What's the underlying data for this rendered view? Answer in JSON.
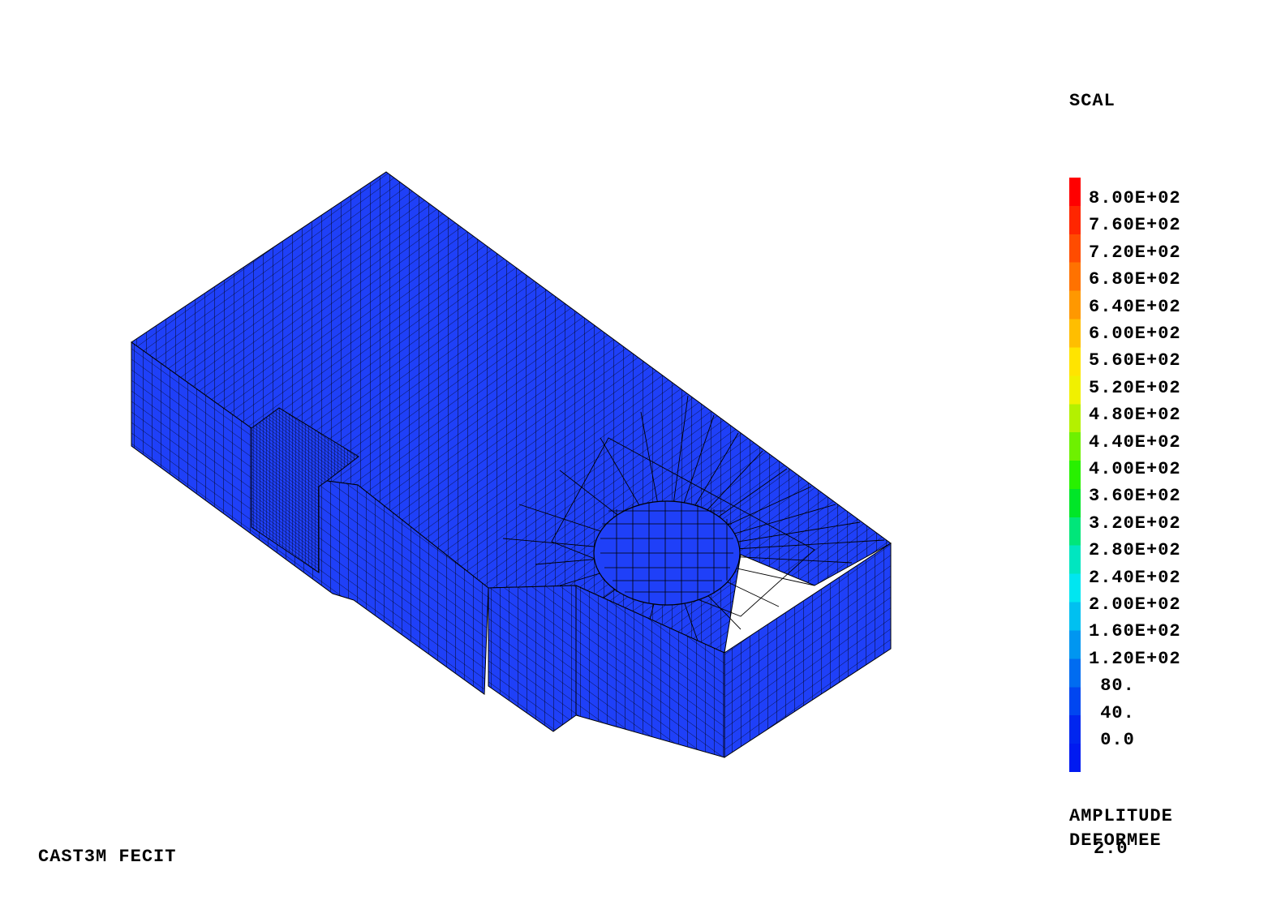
{
  "field_title": "SCAL",
  "legend": {
    "labels": [
      "8.00E+02",
      "7.60E+02",
      "7.20E+02",
      "6.80E+02",
      "6.40E+02",
      "6.00E+02",
      "5.60E+02",
      "5.20E+02",
      "4.80E+02",
      "4.40E+02",
      "4.00E+02",
      "3.60E+02",
      "3.20E+02",
      "2.80E+02",
      "2.40E+02",
      "2.00E+02",
      "1.60E+02",
      "1.20E+02",
      " 80.",
      " 40.",
      " 0.0"
    ],
    "colors": [
      "#ff0000",
      "#ff2600",
      "#ff4c00",
      "#ff7200",
      "#ff9800",
      "#ffbe00",
      "#ffe400",
      "#f0f000",
      "#b4f000",
      "#6ef000",
      "#28f000",
      "#00e628",
      "#00e67a",
      "#00e6c0",
      "#00e6f0",
      "#00c0f0",
      "#0096f0",
      "#006cf0",
      "#0046f0",
      "#0026ef",
      "#001af0"
    ]
  },
  "deformation": {
    "label_line1": "AMPLITUDE",
    "label_line2": "DEFORMEE",
    "value": "2.0"
  },
  "footer": "CAST3M FECIT",
  "mesh": {
    "fill_color": "#1f40f8",
    "edge_color": "#000000"
  }
}
